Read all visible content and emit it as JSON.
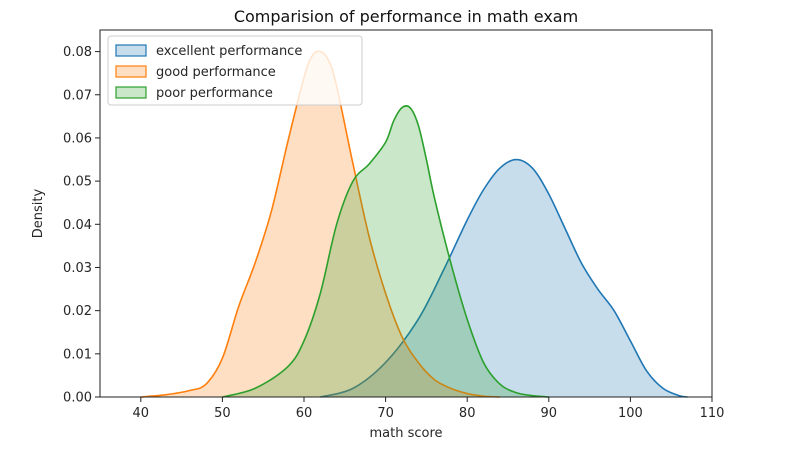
{
  "chart_data": {
    "type": "area",
    "title": "Comparision of performance in math exam",
    "xlabel": "math score",
    "ylabel": "Density",
    "xlim": [
      35,
      110
    ],
    "ylim": [
      0,
      0.085
    ],
    "xticks": [
      40,
      50,
      60,
      70,
      80,
      90,
      100,
      110
    ],
    "yticks": [
      0.0,
      0.01,
      0.02,
      0.03,
      0.04,
      0.05,
      0.06,
      0.07,
      0.08
    ],
    "ytick_labels": [
      "0.00",
      "0.01",
      "0.02",
      "0.03",
      "0.04",
      "0.05",
      "0.06",
      "0.07",
      "0.08"
    ],
    "legend_position": "top-left",
    "grid": false,
    "series": [
      {
        "name": "excellent performance",
        "color": "#1f77b4",
        "x": [
          62,
          66,
          70,
          74,
          77,
          80,
          82,
          84,
          86,
          88,
          90,
          92,
          94,
          96,
          98,
          100,
          102,
          104,
          106,
          107
        ],
        "values": [
          0.0,
          0.002,
          0.008,
          0.018,
          0.029,
          0.041,
          0.048,
          0.053,
          0.055,
          0.053,
          0.047,
          0.039,
          0.031,
          0.025,
          0.02,
          0.013,
          0.006,
          0.002,
          0.0003,
          0.0
        ]
      },
      {
        "name": "good performance",
        "color": "#ff7f0e",
        "x": [
          40,
          43,
          46,
          48,
          50,
          52,
          54,
          56,
          58,
          60,
          61,
          62,
          63,
          64,
          66,
          68,
          70,
          72,
          74,
          76,
          78,
          80,
          82,
          84
        ],
        "values": [
          0.0,
          0.0005,
          0.0015,
          0.003,
          0.009,
          0.021,
          0.031,
          0.043,
          0.059,
          0.074,
          0.079,
          0.08,
          0.078,
          0.072,
          0.054,
          0.037,
          0.024,
          0.014,
          0.008,
          0.004,
          0.002,
          0.0008,
          0.0002,
          0.0
        ]
      },
      {
        "name": "poor performance",
        "color": "#2ca02c",
        "x": [
          50,
          54,
          58,
          60,
          62,
          64,
          66,
          68,
          70,
          71,
          72,
          73,
          74,
          75,
          76,
          78,
          80,
          82,
          84,
          86,
          88,
          90
        ],
        "values": [
          0.0,
          0.002,
          0.007,
          0.013,
          0.024,
          0.04,
          0.05,
          0.054,
          0.059,
          0.064,
          0.067,
          0.067,
          0.063,
          0.055,
          0.046,
          0.031,
          0.018,
          0.008,
          0.003,
          0.001,
          0.0003,
          0.0
        ]
      }
    ]
  }
}
